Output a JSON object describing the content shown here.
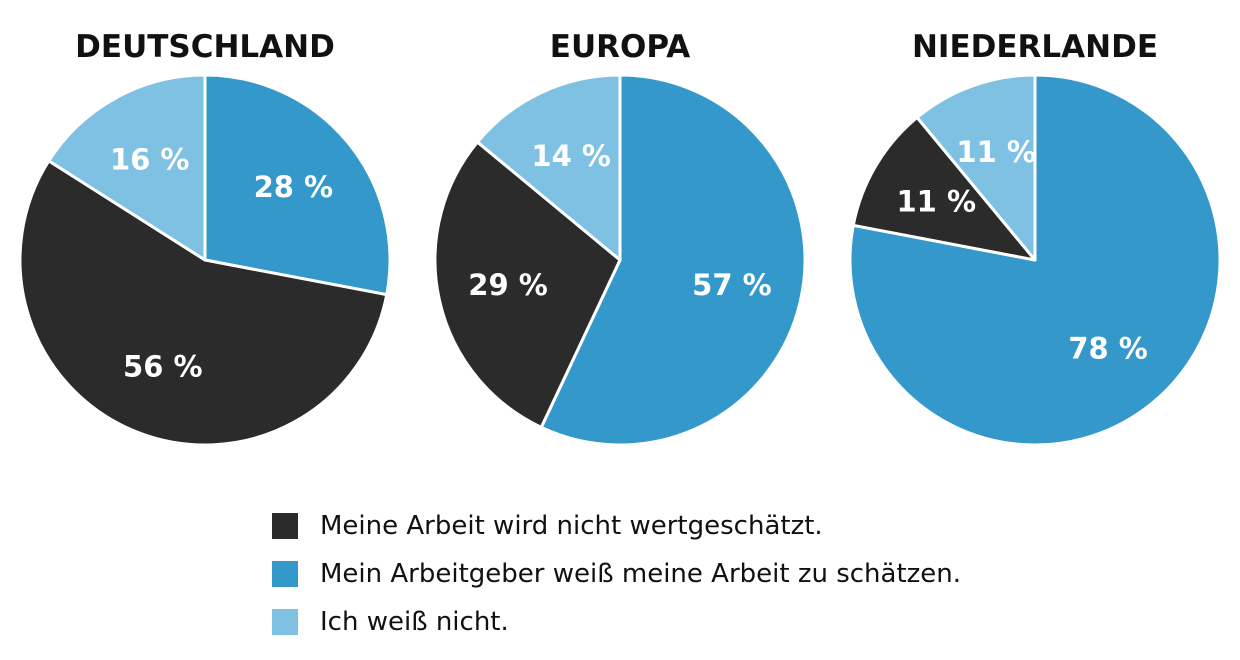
{
  "colors": {
    "dark": "#2b2b2b",
    "blue": "#3498cb",
    "light": "#7fc1e3",
    "label_on_light": "#ffffff",
    "separator": "#ffffff"
  },
  "chart_data": [
    {
      "type": "pie",
      "title": "DEUTSCHLAND",
      "slices": [
        {
          "category": "Mein Arbeitgeber weiß meine Arbeit zu schätzen.",
          "value": 28,
          "label": "28 %",
          "color_key": "blue"
        },
        {
          "category": "Meine Arbeit wird nicht wertgeschätzt.",
          "value": 56,
          "label": "56 %",
          "color_key": "dark"
        },
        {
          "category": "Ich weiß nicht.",
          "value": 16,
          "label": "16 %",
          "color_key": "light"
        }
      ]
    },
    {
      "type": "pie",
      "title": "EUROPA",
      "slices": [
        {
          "category": "Mein Arbeitgeber weiß meine Arbeit zu schätzen.",
          "value": 57,
          "label": "57 %",
          "color_key": "blue"
        },
        {
          "category": "Meine Arbeit wird nicht wertgeschätzt.",
          "value": 29,
          "label": "29 %",
          "color_key": "dark"
        },
        {
          "category": "Ich weiß nicht.",
          "value": 14,
          "label": "14 %",
          "color_key": "light"
        }
      ]
    },
    {
      "type": "pie",
      "title": "NIEDERLANDE",
      "slices": [
        {
          "category": "Mein Arbeitgeber weiß meine Arbeit zu schätzen.",
          "value": 78,
          "label": "78 %",
          "color_key": "blue"
        },
        {
          "category": "Meine Arbeit wird nicht wertgeschätzt.",
          "value": 11,
          "label": "11 %",
          "color_key": "dark"
        },
        {
          "category": "Ich weiß nicht.",
          "value": 11,
          "label": "11 %",
          "color_key": "light"
        }
      ]
    }
  ],
  "legend": [
    {
      "label": "Meine Arbeit wird nicht wertgeschätzt.",
      "color_key": "dark"
    },
    {
      "label": "Mein Arbeitgeber weiß meine Arbeit zu schätzen.",
      "color_key": "blue"
    },
    {
      "label": "Ich weiß nicht.",
      "color_key": "light"
    }
  ]
}
